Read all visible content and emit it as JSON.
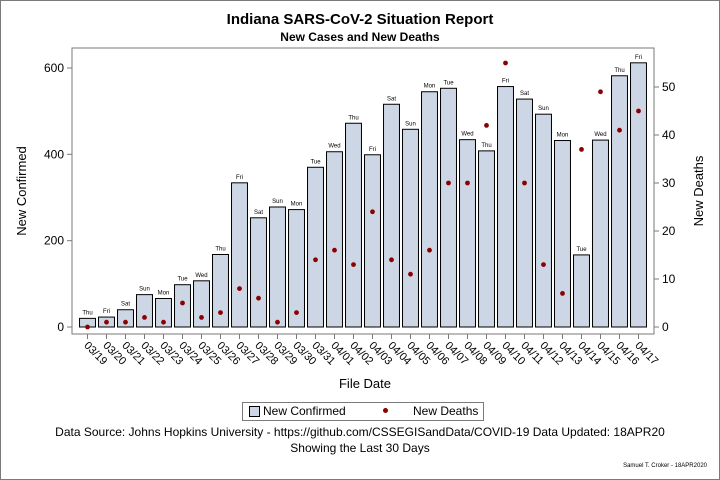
{
  "title": "Indiana SARS-CoV-2 Situation Report",
  "subtitle": "New Cases and New Deaths",
  "legend": {
    "bars": "New Confirmed",
    "points": "New Deaths"
  },
  "source": "Data Source: Johns Hopkins University - https://github.com/CSSEGISandData/COVID-19 Data Updated: 18APR20",
  "note": "Showing the Last 30 Days",
  "credit": "Samuel T. Croker - 18APR2020",
  "colors": {
    "bar_fill": "#cdd6e4",
    "bar_stroke": "#000000",
    "point": "#8b0000",
    "axis": "#7a7a7a"
  },
  "chart_data": {
    "type": "bar",
    "title": "Indiana SARS-CoV-2 Situation Report",
    "subtitle": "New Cases and New Deaths",
    "xlabel": "File Date",
    "ylabel": "New Confirmed",
    "y2label": "New Deaths",
    "ylim": [
      0,
      630
    ],
    "y2lim": [
      0,
      56.2
    ],
    "yticks": [
      0,
      200,
      400,
      600
    ],
    "y2ticks": [
      0,
      10,
      20,
      30,
      40,
      50
    ],
    "grid": false,
    "legend_position": "bottom",
    "categories": [
      "03/19",
      "03/20",
      "03/21",
      "03/22",
      "03/23",
      "03/24",
      "03/25",
      "03/26",
      "03/27",
      "03/28",
      "03/29",
      "03/30",
      "03/31",
      "04/01",
      "04/02",
      "04/03",
      "04/04",
      "04/05",
      "04/06",
      "04/07",
      "04/08",
      "04/09",
      "04/10",
      "04/11",
      "04/12",
      "04/13",
      "04/14",
      "04/15",
      "04/16",
      "04/17"
    ],
    "weekday_labels": [
      "Thu",
      "Fri",
      "Sat",
      "Sun",
      "Mon",
      "Tue",
      "Wed",
      "Thu",
      "Fri",
      "Sat",
      "Sun",
      "Mon",
      "Tue",
      "Wed",
      "Thu",
      "Fri",
      "Sat",
      "Sun",
      "Mon",
      "Tue",
      "Wed",
      "Thu",
      "Fri",
      "Sat",
      "Sun",
      "Mon",
      "Tue",
      "Wed",
      "Thu",
      "Fri"
    ],
    "series": [
      {
        "name": "New Confirmed",
        "type": "bar",
        "axis": "left",
        "values": [
          20,
          23,
          40,
          75,
          66,
          98,
          107,
          168,
          334,
          253,
          278,
          272,
          370,
          406,
          472,
          399,
          516,
          458,
          545,
          553,
          434,
          408,
          557,
          528,
          493,
          432,
          167,
          433,
          582,
          612
        ]
      },
      {
        "name": "New Deaths",
        "type": "scatter",
        "axis": "right",
        "values": [
          0,
          1,
          1,
          2,
          1,
          5,
          2,
          3,
          8,
          6,
          1,
          3,
          14,
          16,
          13,
          24,
          14,
          11,
          16,
          30,
          30,
          42,
          55,
          30,
          13,
          7,
          37,
          49,
          41,
          45
        ]
      }
    ]
  }
}
